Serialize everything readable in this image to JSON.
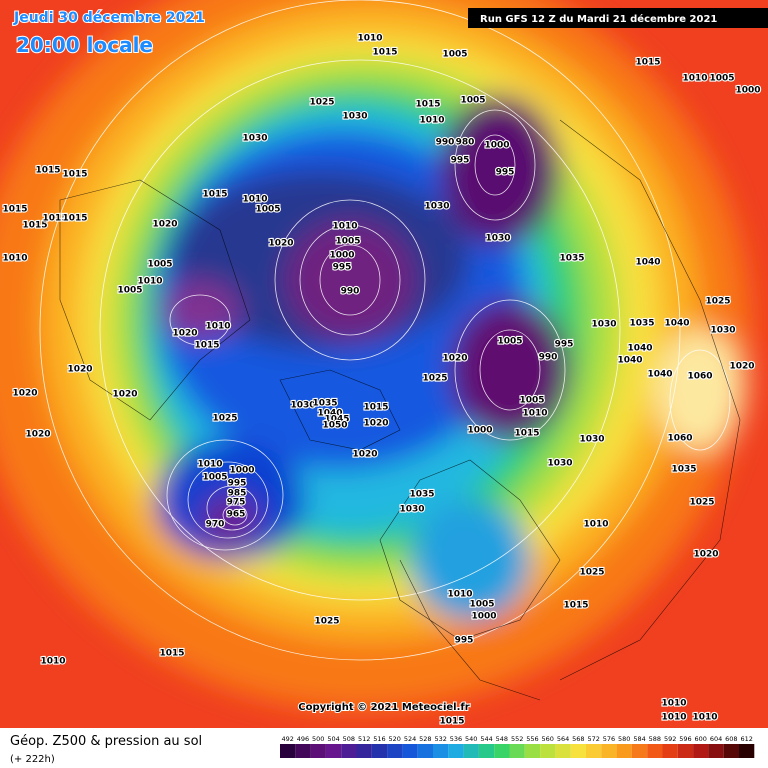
{
  "header": {
    "date": "Jeudi 30 décembre 2021",
    "time": "20:00 locale",
    "run": "Run GFS 12 Z du Mardi 21 décembre 2021"
  },
  "footer": {
    "title": "Géop. Z500 & pression au sol",
    "subtitle": "(+ 222h)",
    "copyright": "Copyright © 2021 Meteociel.fr"
  },
  "scale": {
    "labels": [
      492,
      496,
      500,
      504,
      508,
      512,
      516,
      520,
      524,
      528,
      532,
      536,
      540,
      544,
      548,
      552,
      556,
      560,
      564,
      568,
      572,
      576,
      580,
      584,
      588,
      592,
      596,
      600,
      604,
      608,
      612
    ]
  },
  "isobar_labels": [
    1010,
    1015,
    1005,
    1015,
    1010,
    1005,
    1000,
    1025,
    1030,
    1015,
    1005,
    1010,
    990,
    980,
    1000,
    995,
    995,
    1030,
    1015,
    1015,
    1015,
    1010,
    1005,
    1030,
    1015,
    1015,
    1015,
    1015,
    1020,
    1010,
    1005,
    1020,
    1030,
    1010,
    1005,
    1000,
    995,
    1035,
    1040,
    1010,
    1005,
    990,
    1025,
    1020,
    1010,
    1015,
    1030,
    1035,
    1040,
    1030,
    1005,
    990,
    995,
    1040,
    1020,
    1040,
    1020,
    1020,
    1025,
    1040,
    1060,
    1020,
    1020,
    1005,
    1030,
    1035,
    1040,
    1045,
    1050,
    1015,
    1020,
    1010,
    1025,
    1000,
    1015,
    1030,
    1020,
    1060,
    1020,
    1030,
    1035,
    1010,
    1000,
    1005,
    995,
    985,
    975,
    1035,
    1030,
    970,
    965,
    1025,
    1010,
    1020,
    1025,
    1010,
    1005,
    1015,
    1000,
    995,
    1025,
    1015,
    1010,
    1010,
    1010,
    1010,
    1015
  ]
}
